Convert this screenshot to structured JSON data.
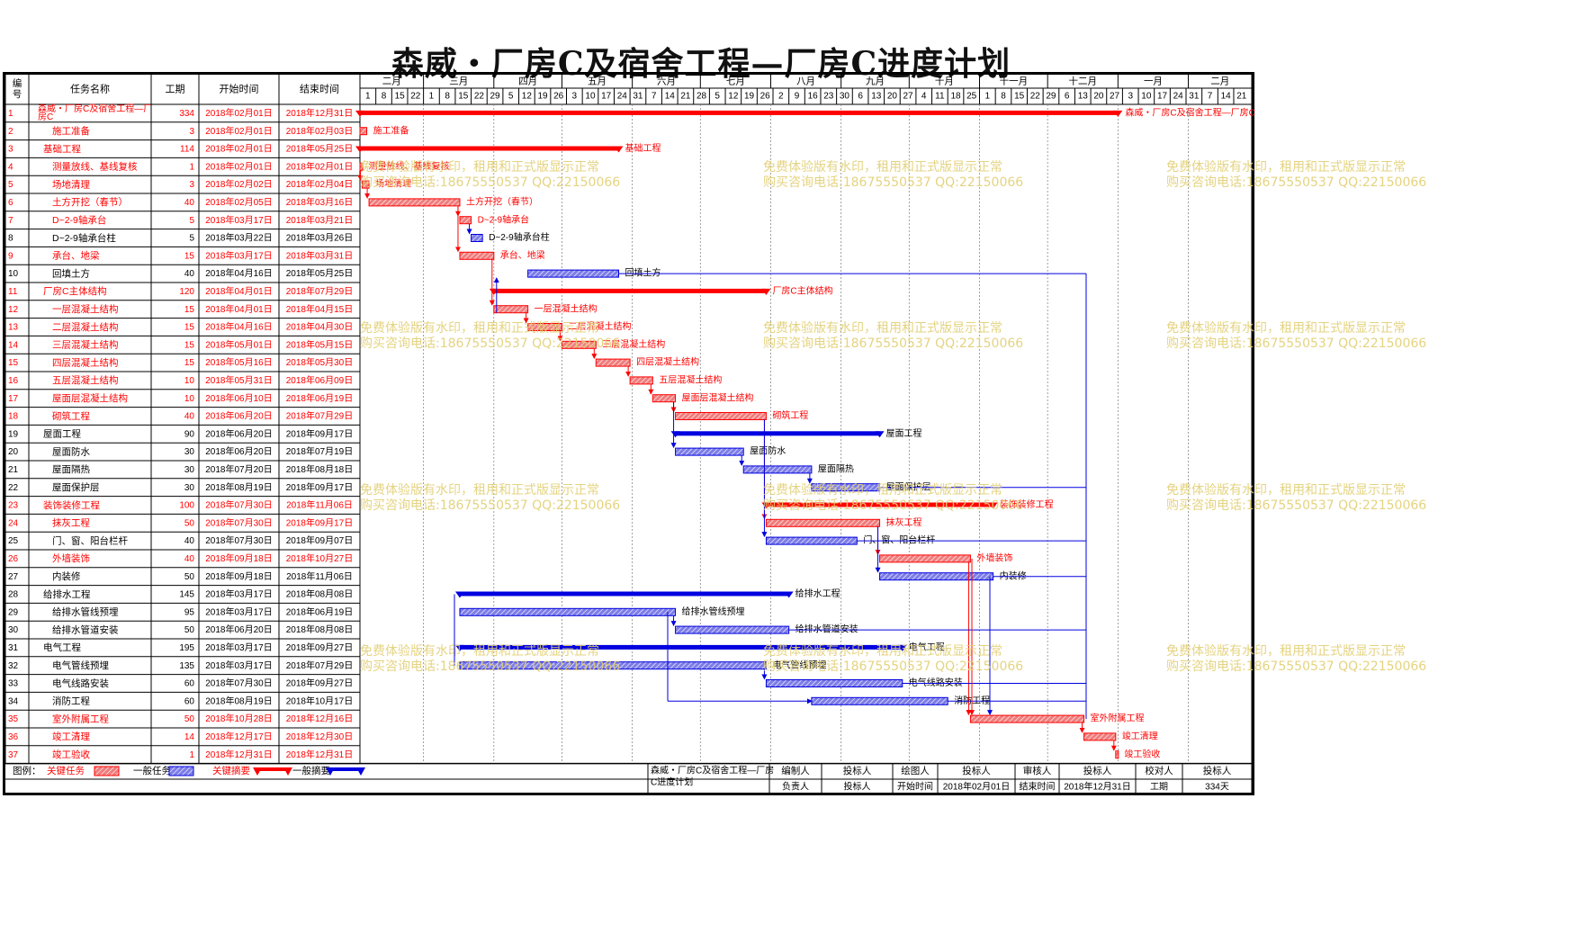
{
  "title": "森威・厂房C及宿舍工程—厂房C进度计划",
  "colors": {
    "critical": "#ff0000",
    "critical_bar": "#f07d7d",
    "normal": "#0000e0",
    "normal_bar": "#7d7de8",
    "grid": "#000000",
    "watermark": "#e2cf73"
  },
  "headers": {
    "id": "编号",
    "name": "任务名称",
    "duration": "工期",
    "start": "开始时间",
    "end": "结束时间"
  },
  "months": [
    {
      "label": "二月",
      "days": [
        "1",
        "8",
        "15",
        "22"
      ]
    },
    {
      "label": "三月",
      "days": [
        "1",
        "8",
        "15",
        "22",
        "29"
      ]
    },
    {
      "label": "四月",
      "days": [
        "5",
        "12",
        "19",
        "26"
      ]
    },
    {
      "label": "五月",
      "days": [
        "3",
        "10",
        "17",
        "24",
        "31"
      ]
    },
    {
      "label": "六月",
      "days": [
        "7",
        "14",
        "21",
        "28"
      ]
    },
    {
      "label": "七月",
      "days": [
        "5",
        "12",
        "19",
        "26"
      ]
    },
    {
      "label": "八月",
      "days": [
        "2",
        "9",
        "16",
        "23",
        "30"
      ]
    },
    {
      "label": "九月",
      "days": [
        "6",
        "13",
        "20",
        "27"
      ]
    },
    {
      "label": "十月",
      "days": [
        "4",
        "11",
        "18",
        "25"
      ]
    },
    {
      "label": "十一月",
      "days": [
        "1",
        "8",
        "15",
        "22",
        "29"
      ]
    },
    {
      "label": "十二月",
      "days": [
        "6",
        "13",
        "20",
        "27"
      ]
    },
    {
      "label": "一月",
      "days": [
        "3",
        "10",
        "17",
        "24",
        "31"
      ]
    },
    {
      "label": "二月",
      "days": [
        "7",
        "14",
        "21"
      ]
    }
  ],
  "chart_data": {
    "type": "gantt",
    "x_axis": {
      "start": "2018-02-01",
      "end": "2019-02-27"
    },
    "tasks": [
      {
        "id": "1",
        "name": "森威・厂房C及宿舍工程—厂房C",
        "duration": "334",
        "start": "2018年02月01日",
        "end": "2018年12月31日",
        "s": "2018-02-01",
        "e": "2018-12-31",
        "kind": "summary",
        "critical": true,
        "label": "森威・厂房C及宿舍工程—厂房C"
      },
      {
        "id": "2",
        "name": "施工准备",
        "duration": "3",
        "start": "2018年02月01日",
        "end": "2018年02月03日",
        "s": "2018-02-01",
        "e": "2018-02-03",
        "kind": "task",
        "critical": true,
        "label": "施工准备"
      },
      {
        "id": "3",
        "name": "基础工程",
        "duration": "114",
        "start": "2018年02月01日",
        "end": "2018年05月25日",
        "s": "2018-02-01",
        "e": "2018-05-25",
        "kind": "summary",
        "critical": true,
        "label": "基础工程"
      },
      {
        "id": "4",
        "name": "测量放线、基线复核",
        "duration": "1",
        "start": "2018年02月01日",
        "end": "2018年02月01日",
        "s": "2018-02-01",
        "e": "2018-02-01",
        "kind": "task",
        "critical": true,
        "label": "测量放线、基线复核"
      },
      {
        "id": "5",
        "name": "场地清理",
        "duration": "3",
        "start": "2018年02月02日",
        "end": "2018年02月04日",
        "s": "2018-02-02",
        "e": "2018-02-04",
        "kind": "task",
        "critical": true,
        "label": "场地清理"
      },
      {
        "id": "6",
        "name": "土方开挖（春节）",
        "duration": "40",
        "start": "2018年02月05日",
        "end": "2018年03月16日",
        "s": "2018-02-05",
        "e": "2018-03-16",
        "kind": "task",
        "critical": true,
        "label": "土方开挖（春节）"
      },
      {
        "id": "7",
        "name": "D~2-9轴承台",
        "duration": "5",
        "start": "2018年03月17日",
        "end": "2018年03月21日",
        "s": "2018-03-17",
        "e": "2018-03-21",
        "kind": "task",
        "critical": true,
        "label": "D~2-9轴承台"
      },
      {
        "id": "8",
        "name": "D~2-9轴承台柱",
        "duration": "5",
        "start": "2018年03月22日",
        "end": "2018年03月26日",
        "s": "2018-03-22",
        "e": "2018-03-26",
        "kind": "task",
        "critical": false,
        "label": "D~2-9轴承台柱"
      },
      {
        "id": "9",
        "name": "承台、地梁",
        "duration": "15",
        "start": "2018年03月17日",
        "end": "2018年03月31日",
        "s": "2018-03-17",
        "e": "2018-03-31",
        "kind": "task",
        "critical": true,
        "label": "承台、地梁"
      },
      {
        "id": "10",
        "name": "回填土方",
        "duration": "40",
        "start": "2018年04月16日",
        "end": "2018年05月25日",
        "s": "2018-04-16",
        "e": "2018-05-25",
        "kind": "task",
        "critical": false,
        "label": "回填土方"
      },
      {
        "id": "11",
        "name": "厂房C主体结构",
        "duration": "120",
        "start": "2018年04月01日",
        "end": "2018年07月29日",
        "s": "2018-04-01",
        "e": "2018-07-29",
        "kind": "summary",
        "critical": true,
        "label": "厂房C主体结构"
      },
      {
        "id": "12",
        "name": "一层混凝土结构",
        "duration": "15",
        "start": "2018年04月01日",
        "end": "2018年04月15日",
        "s": "2018-04-01",
        "e": "2018-04-15",
        "kind": "task",
        "critical": true,
        "label": "一层混凝土结构"
      },
      {
        "id": "13",
        "name": "二层混凝土结构",
        "duration": "15",
        "start": "2018年04月16日",
        "end": "2018年04月30日",
        "s": "2018-04-16",
        "e": "2018-04-30",
        "kind": "task",
        "critical": true,
        "label": "二层混凝土结构"
      },
      {
        "id": "14",
        "name": "三层混凝土结构",
        "duration": "15",
        "start": "2018年05月01日",
        "end": "2018年05月15日",
        "s": "2018-05-01",
        "e": "2018-05-15",
        "kind": "task",
        "critical": true,
        "label": "三层混凝土结构"
      },
      {
        "id": "15",
        "name": "四层混凝土结构",
        "duration": "15",
        "start": "2018年05月16日",
        "end": "2018年05月30日",
        "s": "2018-05-16",
        "e": "2018-05-30",
        "kind": "task",
        "critical": true,
        "label": "四层混凝土结构"
      },
      {
        "id": "16",
        "name": "五层混凝土结构",
        "duration": "10",
        "start": "2018年05月31日",
        "end": "2018年06月09日",
        "s": "2018-05-31",
        "e": "2018-06-09",
        "kind": "task",
        "critical": true,
        "label": "五层混凝土结构"
      },
      {
        "id": "17",
        "name": "屋面层混凝土结构",
        "duration": "10",
        "start": "2018年06月10日",
        "end": "2018年06月19日",
        "s": "2018-06-10",
        "e": "2018-06-19",
        "kind": "task",
        "critical": true,
        "label": "屋面层混凝土结构"
      },
      {
        "id": "18",
        "name": "砌筑工程",
        "duration": "40",
        "start": "2018年06月20日",
        "end": "2018年07月29日",
        "s": "2018-06-20",
        "e": "2018-07-29",
        "kind": "task",
        "critical": true,
        "label": "砌筑工程"
      },
      {
        "id": "19",
        "name": "屋面工程",
        "duration": "90",
        "start": "2018年06月20日",
        "end": "2018年09月17日",
        "s": "2018-06-20",
        "e": "2018-09-17",
        "kind": "summary",
        "critical": false,
        "label": "屋面工程"
      },
      {
        "id": "20",
        "name": "屋面防水",
        "duration": "30",
        "start": "2018年06月20日",
        "end": "2018年07月19日",
        "s": "2018-06-20",
        "e": "2018-07-19",
        "kind": "task",
        "critical": false,
        "label": "屋面防水"
      },
      {
        "id": "21",
        "name": "屋面隔热",
        "duration": "30",
        "start": "2018年07月20日",
        "end": "2018年08月18日",
        "s": "2018-07-20",
        "e": "2018-08-18",
        "kind": "task",
        "critical": false,
        "label": "屋面隔热"
      },
      {
        "id": "22",
        "name": "屋面保护层",
        "duration": "30",
        "start": "2018年08月19日",
        "end": "2018年09月17日",
        "s": "2018-08-19",
        "e": "2018-09-17",
        "kind": "task",
        "critical": false,
        "label": "屋面保护层"
      },
      {
        "id": "23",
        "name": "装饰装修工程",
        "duration": "100",
        "start": "2018年07月30日",
        "end": "2018年11月06日",
        "s": "2018-07-30",
        "e": "2018-11-06",
        "kind": "summary",
        "critical": true,
        "label": "装饰装修工程"
      },
      {
        "id": "24",
        "name": "抹灰工程",
        "duration": "50",
        "start": "2018年07月30日",
        "end": "2018年09月17日",
        "s": "2018-07-30",
        "e": "2018-09-17",
        "kind": "task",
        "critical": true,
        "label": "抹灰工程"
      },
      {
        "id": "25",
        "name": "门、窗、阳台栏杆",
        "duration": "40",
        "start": "2018年07月30日",
        "end": "2018年09月07日",
        "s": "2018-07-30",
        "e": "2018-09-07",
        "kind": "task",
        "critical": false,
        "label": "门、窗、阳台栏杆"
      },
      {
        "id": "26",
        "name": "外墙装饰",
        "duration": "40",
        "start": "2018年09月18日",
        "end": "2018年10月27日",
        "s": "2018-09-18",
        "e": "2018-10-27",
        "kind": "task",
        "critical": true,
        "label": "外墙装饰"
      },
      {
        "id": "27",
        "name": "内装修",
        "duration": "50",
        "start": "2018年09月18日",
        "end": "2018年11月06日",
        "s": "2018-09-18",
        "e": "2018-11-06",
        "kind": "task",
        "critical": false,
        "label": "内装修"
      },
      {
        "id": "28",
        "name": "给排水工程",
        "duration": "145",
        "start": "2018年03月17日",
        "end": "2018年08月08日",
        "s": "2018-03-17",
        "e": "2018-08-08",
        "kind": "summary",
        "critical": false,
        "label": "给排水工程"
      },
      {
        "id": "29",
        "name": "给排水管线预埋",
        "duration": "95",
        "start": "2018年03月17日",
        "end": "2018年06月19日",
        "s": "2018-03-17",
        "e": "2018-06-19",
        "kind": "task",
        "critical": false,
        "label": "给排水管线预埋"
      },
      {
        "id": "30",
        "name": "给排水管道安装",
        "duration": "50",
        "start": "2018年06月20日",
        "end": "2018年08月08日",
        "s": "2018-06-20",
        "e": "2018-08-08",
        "kind": "task",
        "critical": false,
        "label": "给排水管道安装"
      },
      {
        "id": "31",
        "name": "电气工程",
        "duration": "195",
        "start": "2018年03月17日",
        "end": "2018年09月27日",
        "s": "2018-03-17",
        "e": "2018-09-27",
        "kind": "summary",
        "critical": false,
        "label": "电气工程"
      },
      {
        "id": "32",
        "name": "电气管线预埋",
        "duration": "135",
        "start": "2018年03月17日",
        "end": "2018年07月29日",
        "s": "2018-03-17",
        "e": "2018-07-29",
        "kind": "task",
        "critical": false,
        "label": "电气管线预埋"
      },
      {
        "id": "33",
        "name": "电气线路安装",
        "duration": "60",
        "start": "2018年07月30日",
        "end": "2018年09月27日",
        "s": "2018-07-30",
        "e": "2018-09-27",
        "kind": "task",
        "critical": false,
        "label": "电气线路安装"
      },
      {
        "id": "34",
        "name": "消防工程",
        "duration": "60",
        "start": "2018年08月19日",
        "end": "2018年10月17日",
        "s": "2018-08-19",
        "e": "2018-10-17",
        "kind": "task",
        "critical": false,
        "label": "消防工程"
      },
      {
        "id": "35",
        "name": "室外附属工程",
        "duration": "50",
        "start": "2018年10月28日",
        "end": "2018年12月16日",
        "s": "2018-10-28",
        "e": "2018-12-16",
        "kind": "task",
        "critical": true,
        "label": "室外附属工程"
      },
      {
        "id": "36",
        "name": "竣工清理",
        "duration": "14",
        "start": "2018年12月17日",
        "end": "2018年12月30日",
        "s": "2018-12-17",
        "e": "2018-12-30",
        "kind": "task",
        "critical": true,
        "label": "竣工清理"
      },
      {
        "id": "37",
        "name": "竣工验收",
        "duration": "1",
        "start": "2018年12月31日",
        "end": "2018年12月31日",
        "s": "2018-12-31",
        "e": "2018-12-31",
        "kind": "task",
        "critical": true,
        "label": "竣工验收"
      }
    ],
    "links": [
      {
        "from": "4",
        "to": "5",
        "type": "FS"
      },
      {
        "from": "5",
        "to": "6",
        "type": "FS"
      },
      {
        "from": "6",
        "to": "7",
        "type": "FS"
      },
      {
        "from": "6",
        "to": "9",
        "type": "FS"
      },
      {
        "from": "7",
        "to": "8",
        "type": "FS"
      },
      {
        "from": "9",
        "to": "12",
        "type": "FS"
      },
      {
        "from": "12",
        "to": "13",
        "type": "FS"
      },
      {
        "from": "12",
        "to": "10",
        "type": "SS"
      },
      {
        "from": "13",
        "to": "14",
        "type": "FS"
      },
      {
        "from": "14",
        "to": "15",
        "type": "FS"
      },
      {
        "from": "15",
        "to": "16",
        "type": "FS"
      },
      {
        "from": "16",
        "to": "17",
        "type": "FS"
      },
      {
        "from": "17",
        "to": "18",
        "type": "FS"
      },
      {
        "from": "17",
        "to": "20",
        "type": "FS"
      },
      {
        "from": "20",
        "to": "21",
        "type": "FS"
      },
      {
        "from": "21",
        "to": "22",
        "type": "FS"
      },
      {
        "from": "18",
        "to": "24",
        "type": "FS"
      },
      {
        "from": "18",
        "to": "25",
        "type": "FS"
      },
      {
        "from": "24",
        "to": "26",
        "type": "FS"
      },
      {
        "from": "24",
        "to": "27",
        "type": "FS"
      },
      {
        "from": "29",
        "to": "30",
        "type": "FS"
      },
      {
        "from": "32",
        "to": "33",
        "type": "FS"
      },
      {
        "from": "26",
        "to": "35",
        "type": "FS"
      },
      {
        "from": "35",
        "to": "36",
        "type": "FS"
      },
      {
        "from": "36",
        "to": "37",
        "type": "FS"
      }
    ]
  },
  "legend": {
    "label": "图例：",
    "items": [
      {
        "label": "关键任务",
        "style": "critical_bar"
      },
      {
        "label": "一般任务",
        "style": "normal_bar"
      },
      {
        "label": "关键摘要",
        "style": "critical_summary"
      },
      {
        "label": "一般摘要",
        "style": "normal_summary"
      }
    ]
  },
  "footer": {
    "project": "森威・厂房C及宿舍工程—厂房C进度计划",
    "row1": [
      "编制人",
      "投标人",
      "绘图人",
      "投标人",
      "审核人",
      "投标人",
      "校对人",
      "投标人"
    ],
    "row2": [
      "负责人",
      "投标人",
      "开始时间",
      "2018年02月01日",
      "结束时间",
      "2018年12月31日",
      "工期",
      "334天"
    ]
  },
  "watermark": {
    "line1": "免费体验版有水印，租用和正式版显示正常",
    "line2": "购买咨询电话:18675550537 QQ:22150066"
  }
}
